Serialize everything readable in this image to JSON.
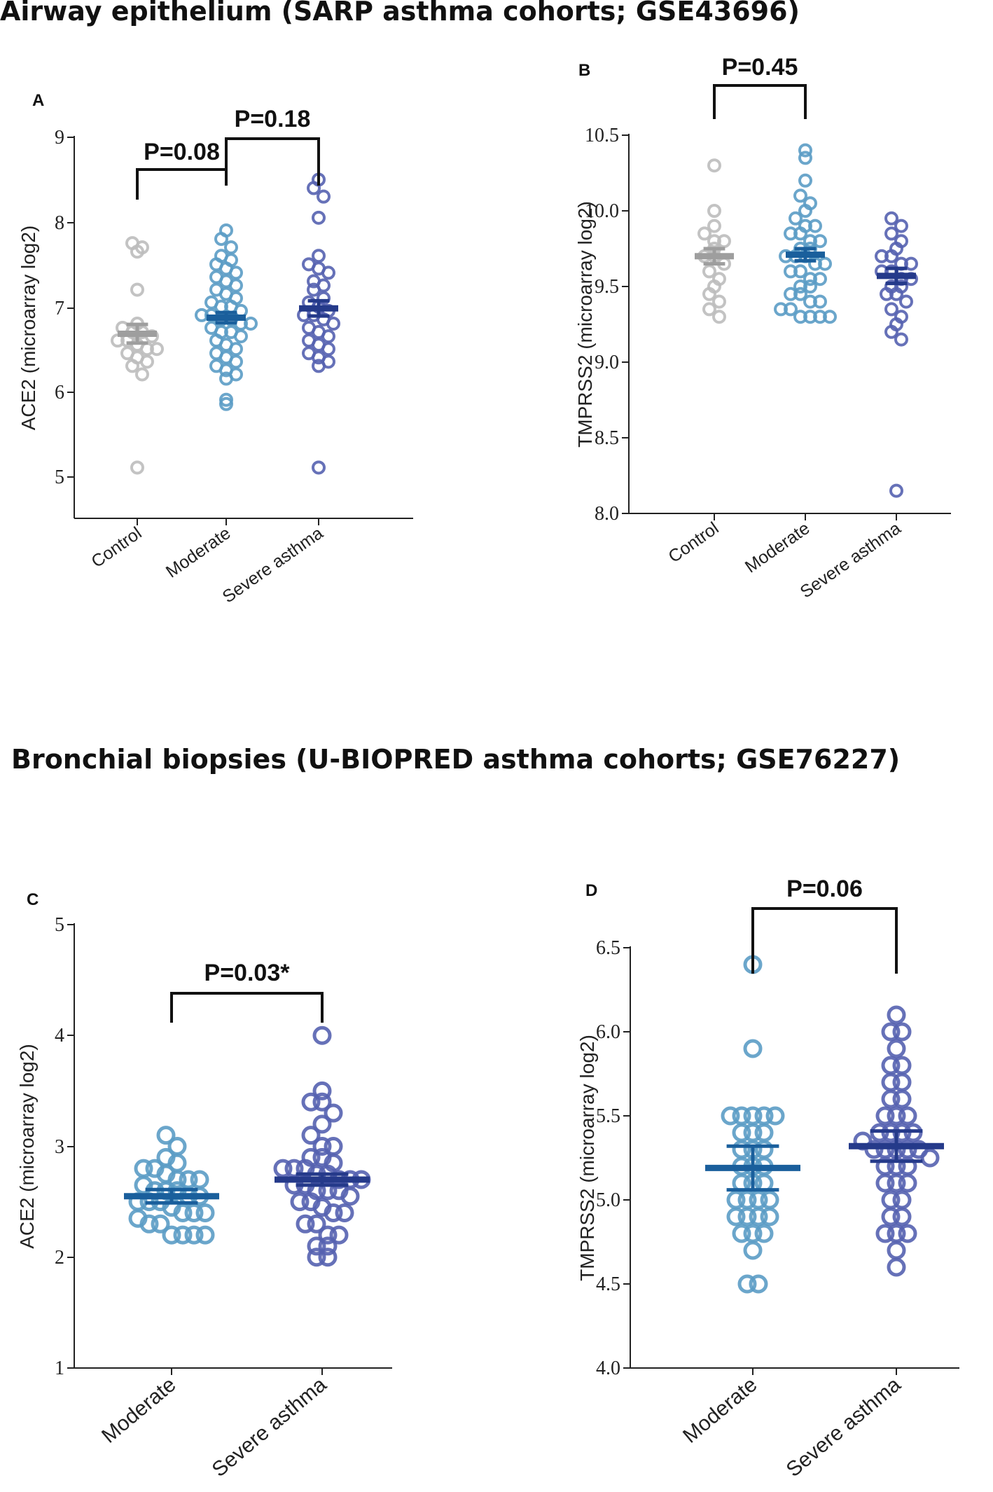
{
  "section_titles": {
    "top": "Airway epithelium (SARP asthma cohorts; GSE43696)",
    "bottom": "Bronchial biopsies (U-BIOPRED asthma cohorts; GSE76227)"
  },
  "colors": {
    "control": "#bdbdbd",
    "control_mean": "#9e9e9e",
    "moderate": "#5b9cc5",
    "moderate_mean": "#1a5f9c",
    "severe": "#5562b0",
    "severe_mean": "#253a8a"
  },
  "chart_data": [
    {
      "id": "A",
      "type": "scatter",
      "panel_label": "A",
      "title": "",
      "xlabel": "",
      "ylabel": "ACE2 (microarray log2)",
      "ylim": [
        4.5,
        9
      ],
      "yticks": [
        "5",
        "6",
        "7",
        "8",
        "9"
      ],
      "categories": [
        "Control",
        "Moderate",
        "Severe asthma"
      ],
      "series": [
        {
          "name": "Control",
          "mean": 6.68,
          "sem": 0.11,
          "values": [
            7.75,
            7.7,
            7.65,
            7.2,
            6.8,
            6.75,
            6.7,
            6.7,
            6.65,
            6.6,
            6.6,
            6.55,
            6.5,
            6.5,
            6.45,
            6.4,
            6.35,
            6.3,
            6.2,
            5.1
          ]
        },
        {
          "name": "Moderate",
          "mean": 6.87,
          "sem": 0.06,
          "values": [
            7.9,
            7.8,
            7.7,
            7.6,
            7.55,
            7.5,
            7.45,
            7.4,
            7.35,
            7.3,
            7.25,
            7.2,
            7.15,
            7.1,
            7.05,
            7.0,
            7.0,
            6.95,
            6.9,
            6.9,
            6.85,
            6.85,
            6.8,
            6.8,
            6.75,
            6.7,
            6.7,
            6.65,
            6.6,
            6.55,
            6.5,
            6.45,
            6.4,
            6.35,
            6.3,
            6.25,
            6.2,
            6.15,
            5.9,
            5.85
          ]
        },
        {
          "name": "Severe asthma",
          "mean": 6.98,
          "sem": 0.09,
          "values": [
            8.5,
            8.4,
            8.3,
            8.05,
            7.6,
            7.5,
            7.45,
            7.4,
            7.3,
            7.25,
            7.2,
            7.1,
            7.05,
            7.0,
            6.95,
            6.9,
            6.9,
            6.85,
            6.8,
            6.75,
            6.7,
            6.65,
            6.6,
            6.55,
            6.5,
            6.45,
            6.4,
            6.35,
            6.3,
            5.1
          ]
        }
      ],
      "comparisons": [
        {
          "from": "Control",
          "to": "Moderate",
          "label": "P=0.08"
        },
        {
          "from": "Moderate",
          "to": "Severe asthma",
          "label": "P=0.18"
        }
      ]
    },
    {
      "id": "B",
      "type": "scatter",
      "panel_label": "B",
      "title": "",
      "xlabel": "",
      "ylabel": "TMPRSS2 (microarray log2)",
      "ylim": [
        8.0,
        10.5
      ],
      "yticks": [
        "8.0",
        "8.5",
        "9.0",
        "9.5",
        "10.0",
        "10.5"
      ],
      "categories": [
        "Control",
        "Moderate",
        "Severe asthma"
      ],
      "series": [
        {
          "name": "Control",
          "mean": 9.7,
          "sem": 0.05,
          "values": [
            10.3,
            10.0,
            9.9,
            9.85,
            9.8,
            9.8,
            9.75,
            9.7,
            9.7,
            9.65,
            9.6,
            9.55,
            9.5,
            9.45,
            9.4,
            9.35,
            9.3
          ]
        },
        {
          "name": "Moderate",
          "mean": 9.71,
          "sem": 0.04,
          "values": [
            10.4,
            10.35,
            10.2,
            10.1,
            10.05,
            10.0,
            9.95,
            9.9,
            9.9,
            9.85,
            9.85,
            9.8,
            9.8,
            9.75,
            9.75,
            9.7,
            9.7,
            9.7,
            9.65,
            9.65,
            9.6,
            9.6,
            9.55,
            9.55,
            9.5,
            9.5,
            9.45,
            9.45,
            9.4,
            9.4,
            9.35,
            9.35,
            9.3,
            9.3,
            9.3,
            9.3
          ]
        },
        {
          "name": "Severe asthma",
          "mean": 9.57,
          "sem": 0.05,
          "values": [
            9.95,
            9.9,
            9.85,
            9.8,
            9.75,
            9.7,
            9.7,
            9.65,
            9.65,
            9.6,
            9.6,
            9.55,
            9.55,
            9.5,
            9.5,
            9.45,
            9.45,
            9.4,
            9.35,
            9.3,
            9.25,
            9.2,
            9.15,
            8.15
          ]
        }
      ],
      "comparisons": [
        {
          "from": "Control",
          "to": "Moderate",
          "label": "P=0.45"
        }
      ]
    },
    {
      "id": "C",
      "type": "scatter",
      "panel_label": "C",
      "title": "",
      "xlabel": "",
      "ylabel": "ACE2 (microarray log2)",
      "ylim": [
        1,
        5
      ],
      "yticks": [
        "1",
        "2",
        "3",
        "4",
        "5"
      ],
      "categories": [
        "Moderate",
        "Severe asthma"
      ],
      "series": [
        {
          "name": "Moderate",
          "mean": 2.55,
          "sem": 0.06,
          "values": [
            3.1,
            3.0,
            2.9,
            2.85,
            2.8,
            2.8,
            2.75,
            2.7,
            2.7,
            2.7,
            2.65,
            2.6,
            2.6,
            2.6,
            2.55,
            2.55,
            2.5,
            2.5,
            2.5,
            2.45,
            2.4,
            2.4,
            2.4,
            2.35,
            2.3,
            2.3,
            2.2,
            2.2,
            2.2,
            2.2
          ]
        },
        {
          "name": "Severe asthma",
          "mean": 2.7,
          "sem": 0.05,
          "values": [
            4.0,
            3.5,
            3.4,
            3.4,
            3.3,
            3.2,
            3.1,
            3.0,
            3.0,
            2.9,
            2.9,
            2.85,
            2.8,
            2.8,
            2.8,
            2.75,
            2.75,
            2.7,
            2.7,
            2.7,
            2.65,
            2.65,
            2.6,
            2.6,
            2.6,
            2.55,
            2.5,
            2.5,
            2.45,
            2.4,
            2.4,
            2.3,
            2.3,
            2.2,
            2.2,
            2.1,
            2.1,
            2.0,
            2.0
          ]
        }
      ],
      "comparisons": [
        {
          "from": "Moderate",
          "to": "Severe asthma",
          "label": "P=0.03*"
        }
      ]
    },
    {
      "id": "D",
      "type": "scatter",
      "panel_label": "D",
      "title": "",
      "xlabel": "",
      "ylabel": "TMPRSS2 (microarray log2)",
      "ylim": [
        4.0,
        6.5
      ],
      "yticks": [
        "4.0",
        "4.5",
        "5.0",
        "5.5",
        "6.0",
        "6.5"
      ],
      "categories": [
        "Moderate",
        "Severe asthma"
      ],
      "series": [
        {
          "name": "Moderate",
          "mean": 5.19,
          "sem": 0.13,
          "values": [
            6.4,
            5.9,
            5.5,
            5.5,
            5.5,
            5.5,
            5.5,
            5.4,
            5.4,
            5.4,
            5.3,
            5.3,
            5.3,
            5.2,
            5.2,
            5.2,
            5.1,
            5.1,
            5.1,
            5.0,
            5.0,
            5.0,
            5.0,
            4.9,
            4.9,
            4.9,
            4.9,
            4.8,
            4.8,
            4.8,
            4.7,
            4.5,
            4.5
          ]
        },
        {
          "name": "Severe asthma",
          "mean": 5.32,
          "sem": 0.09,
          "values": [
            6.1,
            6.0,
            6.0,
            5.9,
            5.8,
            5.8,
            5.7,
            5.7,
            5.6,
            5.6,
            5.5,
            5.5,
            5.5,
            5.4,
            5.4,
            5.4,
            5.4,
            5.35,
            5.3,
            5.3,
            5.3,
            5.3,
            5.3,
            5.25,
            5.2,
            5.2,
            5.2,
            5.1,
            5.1,
            5.1,
            5.0,
            5.0,
            4.9,
            4.9,
            4.8,
            4.8,
            4.8,
            4.7,
            4.6
          ]
        }
      ],
      "comparisons": [
        {
          "from": "Moderate",
          "to": "Severe asthma",
          "label": "P=0.06"
        }
      ]
    }
  ]
}
